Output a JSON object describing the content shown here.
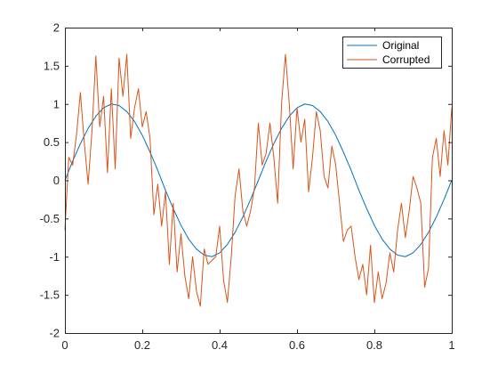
{
  "chart_data": {
    "type": "line",
    "title": "",
    "xlabel": "",
    "ylabel": "",
    "xlim": [
      0,
      1
    ],
    "ylim": [
      -2,
      2
    ],
    "xticks": [
      0,
      0.2,
      0.4,
      0.6,
      0.8,
      1
    ],
    "xtick_labels": [
      "0",
      "0.2",
      "0.4",
      "0.6",
      "0.8",
      "1"
    ],
    "yticks": [
      -2,
      -1.5,
      -1,
      -0.5,
      0,
      0.5,
      1,
      1.5,
      2
    ],
    "ytick_labels": [
      "-2",
      "-1.5",
      "-1",
      "-0.5",
      "0",
      "0.5",
      "1",
      "1.5",
      "2"
    ],
    "grid": false,
    "legend": "top-right",
    "series": [
      {
        "name": "Original",
        "color": "#0072BD",
        "function": "sin(4*pi*x)",
        "x": [
          0,
          0.02,
          0.04,
          0.06,
          0.08,
          0.1,
          0.12,
          0.14,
          0.16,
          0.18,
          0.2,
          0.22,
          0.24,
          0.26,
          0.28,
          0.3,
          0.32,
          0.34,
          0.36,
          0.38,
          0.4,
          0.42,
          0.44,
          0.46,
          0.48,
          0.5,
          0.52,
          0.54,
          0.56,
          0.58,
          0.6,
          0.62,
          0.64,
          0.66,
          0.68,
          0.7,
          0.72,
          0.74,
          0.76,
          0.78,
          0.8,
          0.82,
          0.84,
          0.86,
          0.88,
          0.9,
          0.92,
          0.94,
          0.96,
          0.98,
          1
        ],
        "values": [
          0,
          0.25,
          0.48,
          0.68,
          0.84,
          0.95,
          1,
          0.98,
          0.9,
          0.77,
          0.59,
          0.37,
          0.13,
          -0.13,
          -0.37,
          -0.59,
          -0.77,
          -0.9,
          -0.98,
          -1,
          -0.95,
          -0.84,
          -0.68,
          -0.48,
          -0.25,
          0,
          0.25,
          0.48,
          0.68,
          0.84,
          0.95,
          1,
          0.98,
          0.9,
          0.77,
          0.59,
          0.37,
          0.13,
          -0.13,
          -0.37,
          -0.59,
          -0.77,
          -0.9,
          -0.98,
          -1,
          -0.95,
          -0.84,
          -0.68,
          -0.48,
          -0.25,
          0
        ]
      },
      {
        "name": "Corrupted",
        "color": "#D95319",
        "x": [
          0,
          0.01,
          0.02,
          0.03,
          0.04,
          0.05,
          0.06,
          0.07,
          0.08,
          0.09,
          0.1,
          0.11,
          0.12,
          0.13,
          0.14,
          0.15,
          0.16,
          0.17,
          0.18,
          0.19,
          0.2,
          0.21,
          0.22,
          0.23,
          0.24,
          0.25,
          0.26,
          0.27,
          0.28,
          0.29,
          0.3,
          0.31,
          0.32,
          0.33,
          0.34,
          0.35,
          0.36,
          0.37,
          0.38,
          0.39,
          0.4,
          0.41,
          0.42,
          0.43,
          0.44,
          0.45,
          0.46,
          0.47,
          0.48,
          0.49,
          0.5,
          0.51,
          0.52,
          0.53,
          0.54,
          0.55,
          0.56,
          0.57,
          0.58,
          0.59,
          0.6,
          0.61,
          0.62,
          0.63,
          0.64,
          0.65,
          0.66,
          0.67,
          0.68,
          0.69,
          0.7,
          0.71,
          0.72,
          0.73,
          0.74,
          0.75,
          0.76,
          0.77,
          0.78,
          0.79,
          0.8,
          0.81,
          0.82,
          0.83,
          0.84,
          0.85,
          0.86,
          0.87,
          0.88,
          0.89,
          0.9,
          0.91,
          0.92,
          0.93,
          0.94,
          0.95,
          0.96,
          0.97,
          0.98,
          0.99,
          1
        ],
        "values": [
          -0.65,
          0.3,
          0.2,
          0.6,
          1.15,
          0.5,
          -0.05,
          0.65,
          1.63,
          0.7,
          1.1,
          0.1,
          1.2,
          0.15,
          1.6,
          1.1,
          1.65,
          0.55,
          0.95,
          1.2,
          0.7,
          0.9,
          0.55,
          -0.45,
          -0.05,
          -0.6,
          -0.15,
          -1.1,
          -0.3,
          -1.2,
          -0.7,
          -1.25,
          -1.55,
          -1.0,
          -1.45,
          -1.65,
          -0.9,
          -1.1,
          -1.05,
          -1.0,
          -0.6,
          -1.3,
          -1.6,
          -1.0,
          -0.2,
          0.15,
          -0.4,
          -0.6,
          -0.4,
          -0.1,
          0.75,
          0.2,
          0.35,
          0.75,
          0.3,
          -0.3,
          1.0,
          1.65,
          1.0,
          0.15,
          0.95,
          0.5,
          0.8,
          -0.15,
          0.3,
          0.9,
          0.65,
          0.05,
          -0.1,
          0.45,
          0.2,
          -0.3,
          -0.8,
          -0.65,
          -0.6,
          -1.0,
          -1.3,
          -1.1,
          -1.5,
          -0.85,
          -1.6,
          -1.2,
          -1.55,
          -1.35,
          -0.95,
          -1.2,
          -0.65,
          -0.3,
          -0.75,
          -0.4,
          0.05,
          -0.1,
          -0.3,
          -1.4,
          -1.15,
          0.3,
          0.55,
          0.05,
          0.65,
          0.2,
          0.95
        ]
      }
    ]
  }
}
